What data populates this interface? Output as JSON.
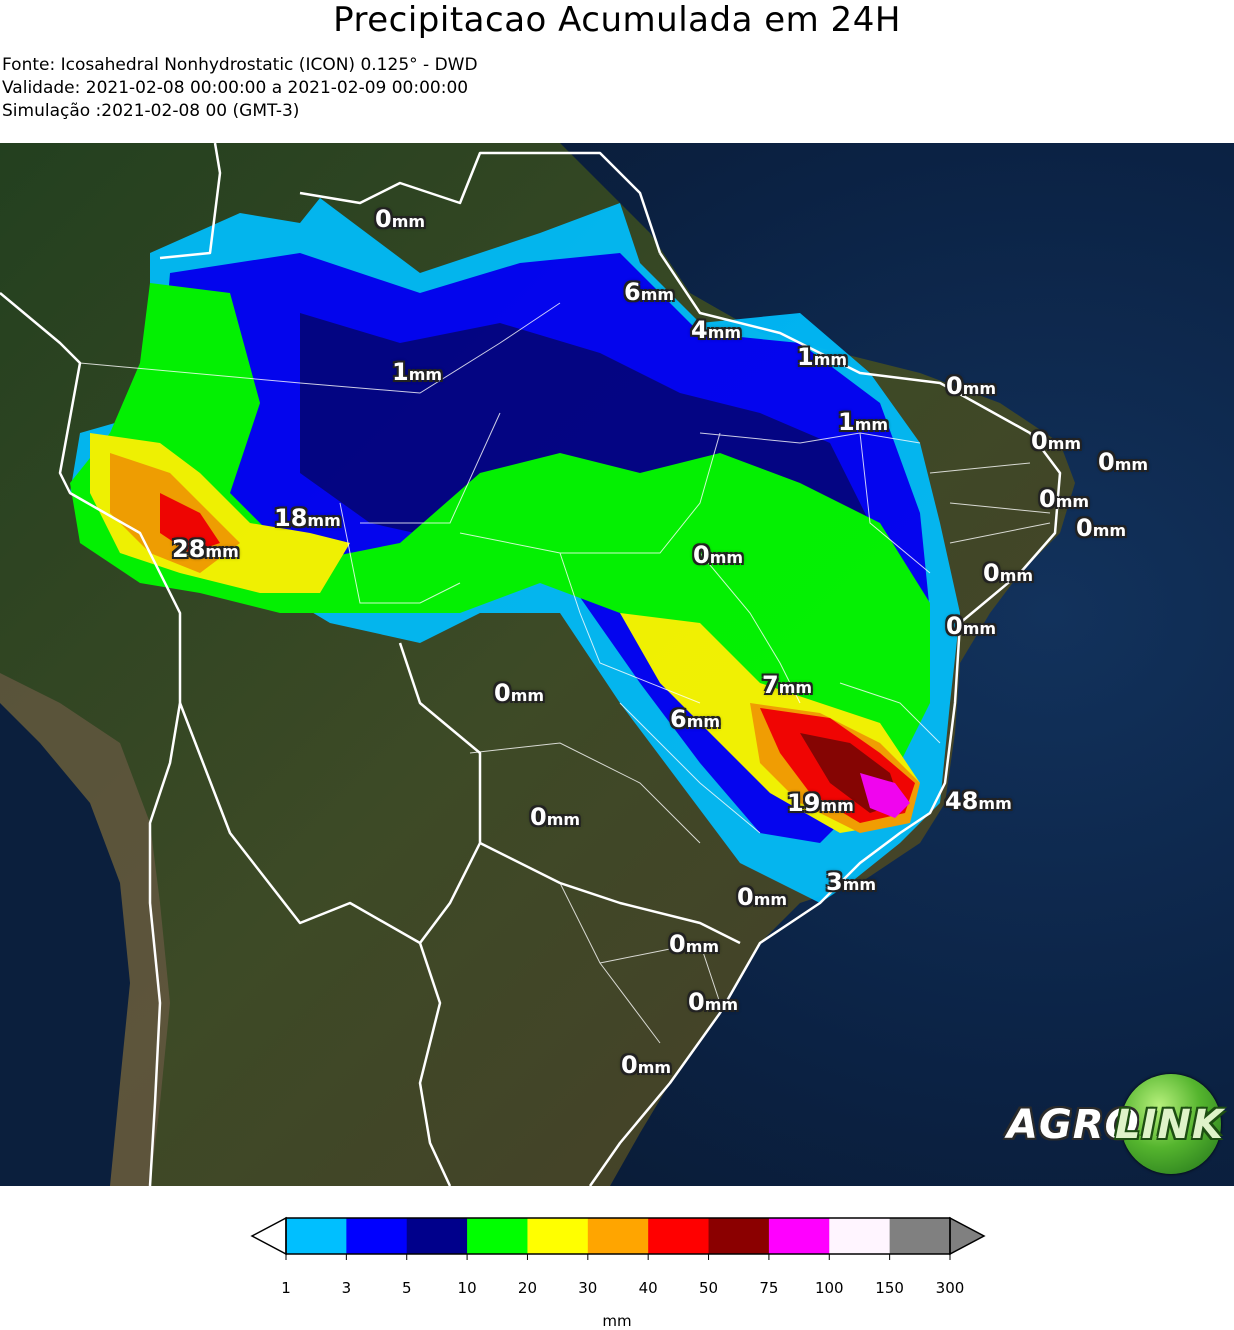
{
  "title": "Precipitacao Acumulada em 24H",
  "source_line": "Fonte: Icosahedral Nonhydrostatic (ICON) 0.125° - DWD",
  "validity_line": "Validade: 2021-02-08 00:00:00 a 2021-02-09 00:00:00",
  "simulation_line": "Simulação :2021-02-08 00 (GMT-3)",
  "map": {
    "labels": [
      {
        "value": "0",
        "unit": "mm"
      },
      {
        "value": "6",
        "unit": "mm"
      },
      {
        "value": "4",
        "unit": "mm"
      },
      {
        "value": "1",
        "unit": "mm"
      },
      {
        "value": "1",
        "unit": "mm"
      },
      {
        "value": "0",
        "unit": "mm"
      },
      {
        "value": "1",
        "unit": "mm"
      },
      {
        "value": "0",
        "unit": "mm"
      },
      {
        "value": "0",
        "unit": "mm"
      },
      {
        "value": "0",
        "unit": "mm"
      },
      {
        "value": "0",
        "unit": "mm"
      },
      {
        "value": "0",
        "unit": "mm"
      },
      {
        "value": "0",
        "unit": "mm"
      },
      {
        "value": "18",
        "unit": "mm"
      },
      {
        "value": "28",
        "unit": "mm"
      },
      {
        "value": "0",
        "unit": "mm"
      },
      {
        "value": "7",
        "unit": "mm"
      },
      {
        "value": "0",
        "unit": "mm"
      },
      {
        "value": "6",
        "unit": "mm"
      },
      {
        "value": "19",
        "unit": "mm"
      },
      {
        "value": "48",
        "unit": "mm"
      },
      {
        "value": "0",
        "unit": "mm"
      },
      {
        "value": "0",
        "unit": "mm"
      },
      {
        "value": "3",
        "unit": "mm"
      },
      {
        "value": "0",
        "unit": "mm"
      },
      {
        "value": "0",
        "unit": "mm"
      },
      {
        "value": "0",
        "unit": "mm"
      }
    ]
  },
  "logo": {
    "part1": "AGRO",
    "part2": "LINK"
  },
  "colorbar": {
    "ticks": [
      "1",
      "3",
      "5",
      "10",
      "20",
      "30",
      "40",
      "50",
      "75",
      "100",
      "150",
      "300"
    ],
    "colors": [
      "#00bfff",
      "#0000ff",
      "#00008b",
      "#00ff00",
      "#ffff00",
      "#ffa500",
      "#ff0000",
      "#8b0000",
      "#ff00ff",
      "#fff5ff",
      "#808080"
    ],
    "unit": "mm"
  }
}
